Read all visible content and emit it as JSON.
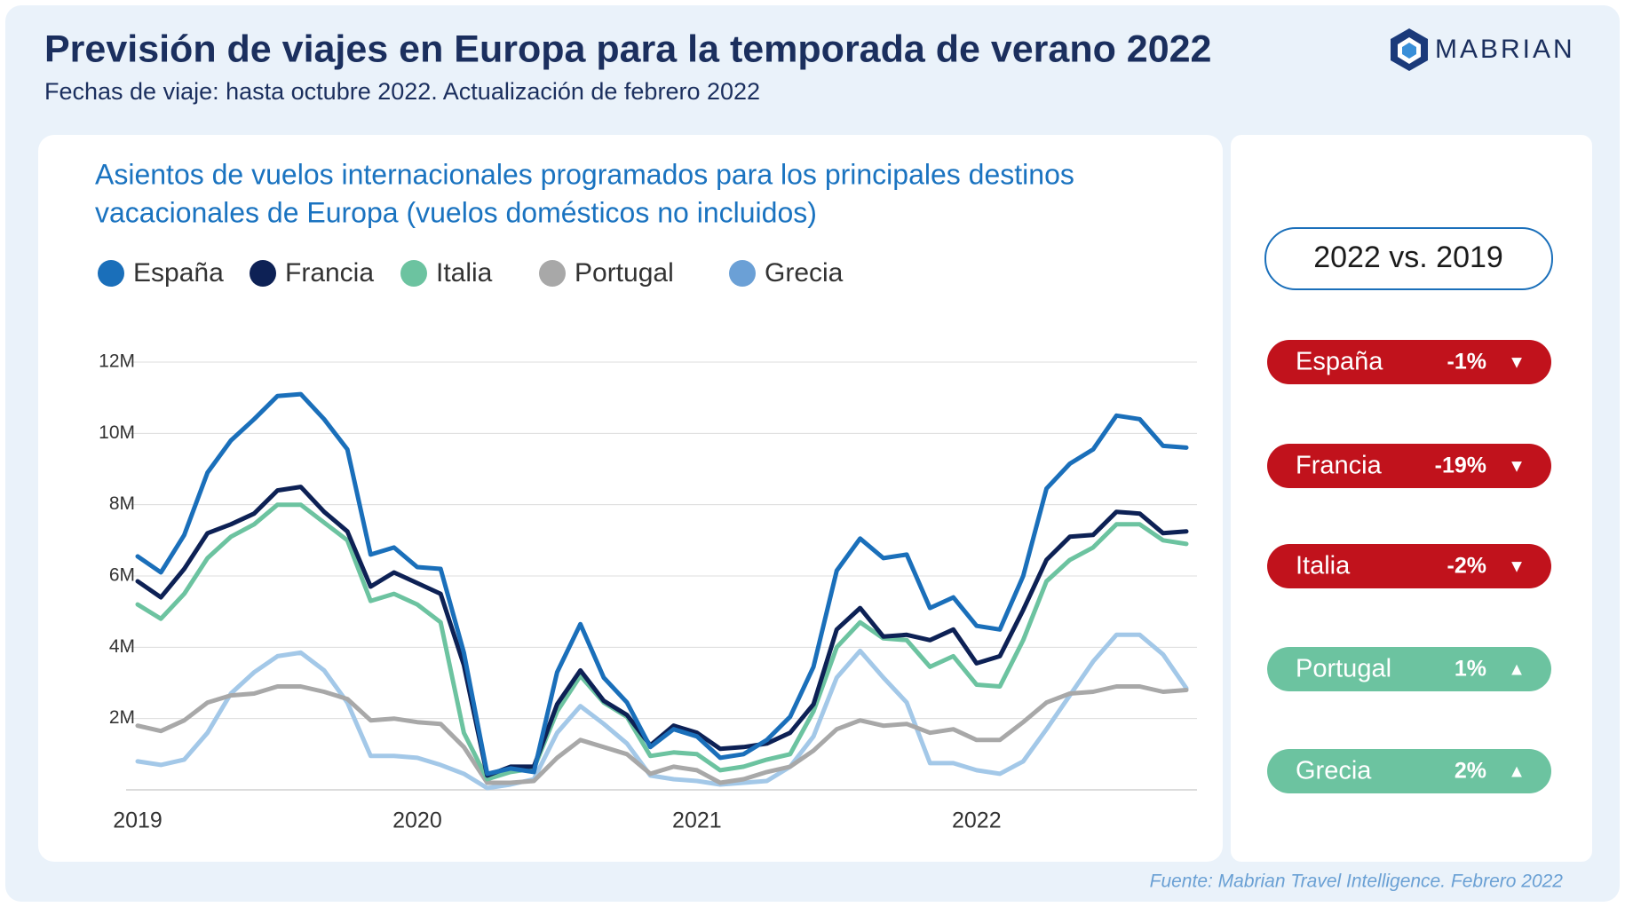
{
  "header": {
    "title": "Previsión de viajes en Europa para la temporada de verano 2022",
    "subtitle": "Fechas de viaje: hasta octubre 2022. Actualización de febrero 2022",
    "logo": "MABRIAN"
  },
  "chart_data": {
    "type": "line",
    "title": [
      "Asientos de vuelos internacionales programados para los principales destinos",
      "vacacionales de Europa (vuelos domésticos no incluidos)"
    ],
    "categories": [
      "2019",
      null,
      null,
      null,
      null,
      null,
      null,
      null,
      null,
      null,
      null,
      null,
      "2020",
      null,
      null,
      null,
      null,
      null,
      null,
      null,
      null,
      null,
      null,
      null,
      "2021",
      null,
      null,
      null,
      null,
      null,
      null,
      null,
      null,
      null,
      null,
      null,
      "2022",
      null,
      null,
      null,
      null,
      null,
      null,
      null,
      null,
      null
    ],
    "ylim": [
      0,
      12000000
    ],
    "yticks": [
      {
        "value": 2000000,
        "label": "2M"
      },
      {
        "value": 4000000,
        "label": "4M"
      },
      {
        "value": 6000000,
        "label": "6M"
      },
      {
        "value": 8000000,
        "label": "8M"
      },
      {
        "value": 10000000,
        "label": "10M"
      },
      {
        "value": 12000000,
        "label": "12M"
      }
    ],
    "grid": true,
    "legend": "top",
    "series": [
      {
        "name": "España",
        "color": "#1a6fba",
        "values": [
          6550000,
          6100000,
          7150000,
          8900000,
          9800000,
          10400000,
          11050000,
          11100000,
          10400000,
          9550000,
          6600000,
          6800000,
          6250000,
          6200000,
          3850000,
          450000,
          600000,
          500000,
          3300000,
          4650000,
          3150000,
          2450000,
          1200000,
          1700000,
          1500000,
          900000,
          1000000,
          1400000,
          2050000,
          3450000,
          6150000,
          7050000,
          6500000,
          6600000,
          5100000,
          5400000,
          4600000,
          4500000,
          6000000,
          8450000,
          9150000,
          9550000,
          10500000,
          10400000,
          9650000,
          9600000
        ]
      },
      {
        "name": "Francia",
        "color": "#0d2155",
        "values": [
          5850000,
          5400000,
          6200000,
          7200000,
          7450000,
          7750000,
          8400000,
          8500000,
          7800000,
          7250000,
          5700000,
          6100000,
          5800000,
          5500000,
          3500000,
          400000,
          650000,
          650000,
          2400000,
          3350000,
          2500000,
          2100000,
          1250000,
          1800000,
          1600000,
          1150000,
          1200000,
          1300000,
          1600000,
          2400000,
          4500000,
          5100000,
          4300000,
          4350000,
          4200000,
          4500000,
          3550000,
          3750000,
          5050000,
          6450000,
          7100000,
          7150000,
          7800000,
          7750000,
          7200000,
          7250000
        ]
      },
      {
        "name": "Italia",
        "color": "#6cc3a0",
        "values": [
          5200000,
          4800000,
          5500000,
          6500000,
          7100000,
          7450000,
          8000000,
          8000000,
          7500000,
          7000000,
          5300000,
          5500000,
          5200000,
          4700000,
          1600000,
          300000,
          500000,
          600000,
          2200000,
          3200000,
          2450000,
          2050000,
          950000,
          1050000,
          1000000,
          550000,
          650000,
          850000,
          1000000,
          2200000,
          4000000,
          4700000,
          4250000,
          4200000,
          3450000,
          3750000,
          2950000,
          2900000,
          4200000,
          5850000,
          6450000,
          6800000,
          7450000,
          7450000,
          7000000,
          6900000
        ]
      },
      {
        "name": "Portugal",
        "color": "#a8a8a8",
        "values": [
          1800000,
          1650000,
          1950000,
          2450000,
          2650000,
          2700000,
          2900000,
          2900000,
          2750000,
          2550000,
          1950000,
          2000000,
          1900000,
          1850000,
          1200000,
          200000,
          200000,
          250000,
          900000,
          1400000,
          1200000,
          1000000,
          450000,
          650000,
          550000,
          200000,
          300000,
          500000,
          650000,
          1100000,
          1700000,
          1950000,
          1800000,
          1850000,
          1600000,
          1700000,
          1400000,
          1400000,
          1900000,
          2450000,
          2700000,
          2750000,
          2900000,
          2900000,
          2750000,
          2800000
        ]
      },
      {
        "name": "Grecia",
        "color": "#a3c8e8",
        "values": [
          800000,
          700000,
          850000,
          1600000,
          2700000,
          3300000,
          3750000,
          3850000,
          3350000,
          2450000,
          950000,
          950000,
          900000,
          700000,
          450000,
          50000,
          150000,
          300000,
          1600000,
          2350000,
          1850000,
          1300000,
          400000,
          300000,
          250000,
          150000,
          200000,
          250000,
          650000,
          1500000,
          3150000,
          3900000,
          3150000,
          2450000,
          750000,
          750000,
          550000,
          450000,
          800000,
          1700000,
          2650000,
          3600000,
          4350000,
          4350000,
          3800000,
          2850000
        ]
      }
    ]
  },
  "comparison": {
    "title": "2022 vs. 2019",
    "items": [
      {
        "name": "España",
        "value": "-1%",
        "arrow": "▼",
        "color": "#c1121c"
      },
      {
        "name": "Francia",
        "value": "-19%",
        "arrow": "▼",
        "color": "#c1121c"
      },
      {
        "name": "Italia",
        "value": "-2%",
        "arrow": "▼",
        "color": "#c1121c"
      },
      {
        "name": "Portugal",
        "value": "1%",
        "arrow": "▲",
        "color": "#6cc3a0"
      },
      {
        "name": "Grecia",
        "value": "2%",
        "arrow": "▲",
        "color": "#6cc3a0"
      }
    ]
  },
  "footer": {
    "source": "Fuente: Mabrian Travel Intelligence. Febrero 2022"
  }
}
